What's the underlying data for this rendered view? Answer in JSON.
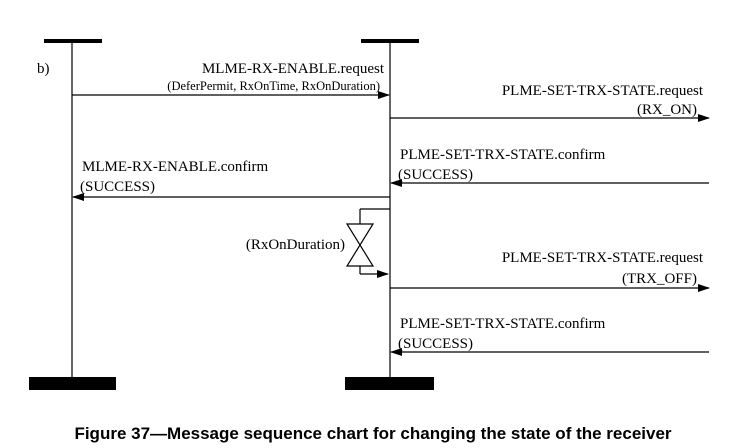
{
  "diagram": {
    "panel_label": "b)",
    "messages": {
      "rx_enable_request": {
        "name": "MLME-RX-ENABLE.request",
        "params": "(DeferPermit, RxOnTime, RxOnDuration)"
      },
      "trx_state_request_on": {
        "name": "PLME-SET-TRX-STATE.request",
        "params": "(RX_ON)"
      },
      "trx_state_confirm_1": {
        "name": "PLME-SET-TRX-STATE.confirm",
        "params": "(SUCCESS)"
      },
      "rx_enable_confirm": {
        "name": "MLME-RX-ENABLE.confirm",
        "params": "(SUCCESS)"
      },
      "timer": {
        "label": "(RxOnDuration)"
      },
      "trx_state_request_off": {
        "name": "PLME-SET-TRX-STATE.request",
        "params": "(TRX_OFF)"
      },
      "trx_state_confirm_2": {
        "name": "PLME-SET-TRX-STATE.confirm",
        "params": "(SUCCESS)"
      }
    }
  },
  "caption": "Figure 37—Message sequence chart for changing the state of the receiver"
}
